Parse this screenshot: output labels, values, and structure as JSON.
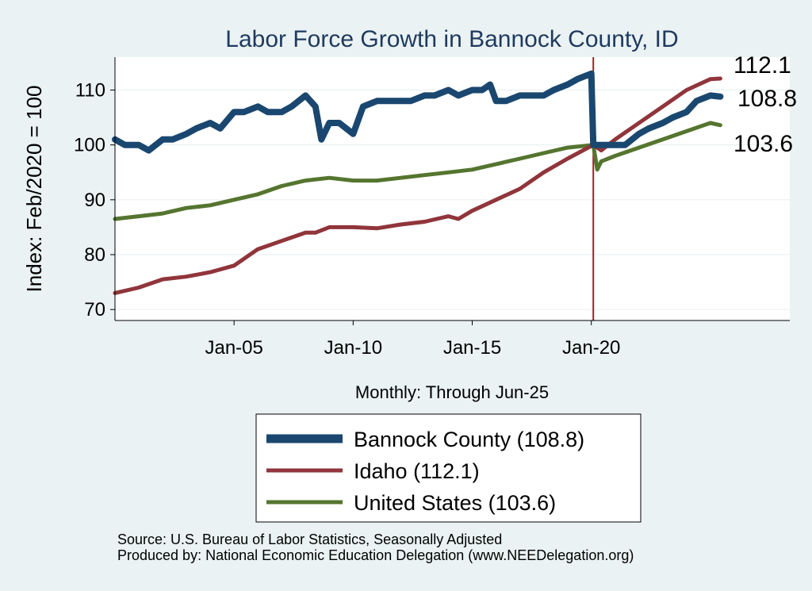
{
  "chart_data": {
    "type": "line",
    "title": "Labor Force Growth in Bannock  County, ID",
    "xlabel": "Monthly: Through Jun-25",
    "ylabel": "Index: Feb/2020 = 100",
    "x_ticks": [
      "Jan-05",
      "Jan-10",
      "Jan-15",
      "Jan-20"
    ],
    "y_ticks": [
      70,
      80,
      90,
      100,
      110
    ],
    "ylim": [
      68,
      116
    ],
    "xlim": [
      "2000-01",
      "2028-05"
    ],
    "reference_line": {
      "x": "2020-02",
      "color": "#a3202f"
    },
    "legend_position": "bottom",
    "grid": true,
    "end_labels": [
      "112.1",
      "108.8",
      "103.6"
    ],
    "series": [
      {
        "name": "Bannock  County (108.8)",
        "color": "#1a476f",
        "end_value": 108.8,
        "points": [
          [
            "2000-01",
            101
          ],
          [
            "2000-06",
            100
          ],
          [
            "2001-01",
            100
          ],
          [
            "2001-06",
            99
          ],
          [
            "2002-01",
            101
          ],
          [
            "2002-06",
            101
          ],
          [
            "2003-01",
            102
          ],
          [
            "2003-06",
            103
          ],
          [
            "2004-01",
            104
          ],
          [
            "2004-06",
            103
          ],
          [
            "2005-01",
            106
          ],
          [
            "2005-06",
            106
          ],
          [
            "2006-01",
            107
          ],
          [
            "2006-06",
            106
          ],
          [
            "2007-01",
            106
          ],
          [
            "2007-06",
            107
          ],
          [
            "2008-01",
            109
          ],
          [
            "2008-06",
            107
          ],
          [
            "2008-09",
            101
          ],
          [
            "2009-01",
            104
          ],
          [
            "2009-06",
            104
          ],
          [
            "2010-01",
            102
          ],
          [
            "2010-06",
            107
          ],
          [
            "2011-01",
            108
          ],
          [
            "2011-06",
            108
          ],
          [
            "2012-01",
            108
          ],
          [
            "2012-06",
            108
          ],
          [
            "2013-01",
            109
          ],
          [
            "2013-06",
            109
          ],
          [
            "2014-01",
            110
          ],
          [
            "2014-06",
            109
          ],
          [
            "2015-01",
            110
          ],
          [
            "2015-06",
            110
          ],
          [
            "2015-10",
            111
          ],
          [
            "2016-01",
            108
          ],
          [
            "2016-06",
            108
          ],
          [
            "2017-01",
            109
          ],
          [
            "2017-06",
            109
          ],
          [
            "2018-01",
            109
          ],
          [
            "2018-06",
            110
          ],
          [
            "2019-01",
            111
          ],
          [
            "2019-06",
            112
          ],
          [
            "2020-01",
            113
          ],
          [
            "2020-02",
            100
          ],
          [
            "2020-06",
            100
          ],
          [
            "2021-01",
            100
          ],
          [
            "2021-06",
            100
          ],
          [
            "2022-01",
            102
          ],
          [
            "2022-06",
            103
          ],
          [
            "2023-01",
            104
          ],
          [
            "2023-06",
            105
          ],
          [
            "2024-01",
            106
          ],
          [
            "2024-06",
            108
          ],
          [
            "2025-01",
            109
          ],
          [
            "2025-06",
            108.8
          ]
        ]
      },
      {
        "name": "Idaho (112.1)",
        "color": "#90353b",
        "end_value": 112.1,
        "points": [
          [
            "2000-01",
            73
          ],
          [
            "2001-01",
            74
          ],
          [
            "2002-01",
            75.5
          ],
          [
            "2003-01",
            76
          ],
          [
            "2004-01",
            76.8
          ],
          [
            "2005-01",
            78
          ],
          [
            "2006-01",
            81
          ],
          [
            "2007-01",
            82.5
          ],
          [
            "2008-01",
            84
          ],
          [
            "2008-06",
            84
          ],
          [
            "2009-01",
            85
          ],
          [
            "2010-01",
            85
          ],
          [
            "2011-01",
            84.8
          ],
          [
            "2012-01",
            85.5
          ],
          [
            "2013-01",
            86
          ],
          [
            "2014-01",
            87
          ],
          [
            "2014-06",
            86.5
          ],
          [
            "2015-01",
            88
          ],
          [
            "2016-01",
            90
          ],
          [
            "2017-01",
            92
          ],
          [
            "2018-01",
            95
          ],
          [
            "2019-01",
            97.5
          ],
          [
            "2020-02",
            100
          ],
          [
            "2020-06",
            99
          ],
          [
            "2021-01",
            101
          ],
          [
            "2022-01",
            104
          ],
          [
            "2023-01",
            107
          ],
          [
            "2024-01",
            110
          ],
          [
            "2025-01",
            112
          ],
          [
            "2025-06",
            112.1
          ]
        ]
      },
      {
        "name": "United States (103.6)",
        "color": "#55752f",
        "end_value": 103.6,
        "points": [
          [
            "2000-01",
            86.5
          ],
          [
            "2001-01",
            87
          ],
          [
            "2002-01",
            87.5
          ],
          [
            "2003-01",
            88.5
          ],
          [
            "2004-01",
            89
          ],
          [
            "2005-01",
            90
          ],
          [
            "2006-01",
            91
          ],
          [
            "2007-01",
            92.5
          ],
          [
            "2008-01",
            93.5
          ],
          [
            "2009-01",
            94
          ],
          [
            "2010-01",
            93.5
          ],
          [
            "2011-01",
            93.5
          ],
          [
            "2012-01",
            94
          ],
          [
            "2013-01",
            94.5
          ],
          [
            "2014-01",
            95
          ],
          [
            "2015-01",
            95.5
          ],
          [
            "2016-01",
            96.5
          ],
          [
            "2017-01",
            97.5
          ],
          [
            "2018-01",
            98.5
          ],
          [
            "2019-01",
            99.5
          ],
          [
            "2020-02",
            100
          ],
          [
            "2020-04",
            95.5
          ],
          [
            "2020-06",
            97
          ],
          [
            "2021-01",
            98
          ],
          [
            "2022-01",
            99.5
          ],
          [
            "2023-01",
            101
          ],
          [
            "2024-01",
            102.5
          ],
          [
            "2025-01",
            104
          ],
          [
            "2025-06",
            103.6
          ]
        ]
      }
    ]
  },
  "footer": {
    "source": "Source: U.S. Bureau of Labor Statistics, Seasonally Adjusted",
    "produced": "Produced by: National Economic Education Delegation (www.NEEDelegation.org)"
  }
}
